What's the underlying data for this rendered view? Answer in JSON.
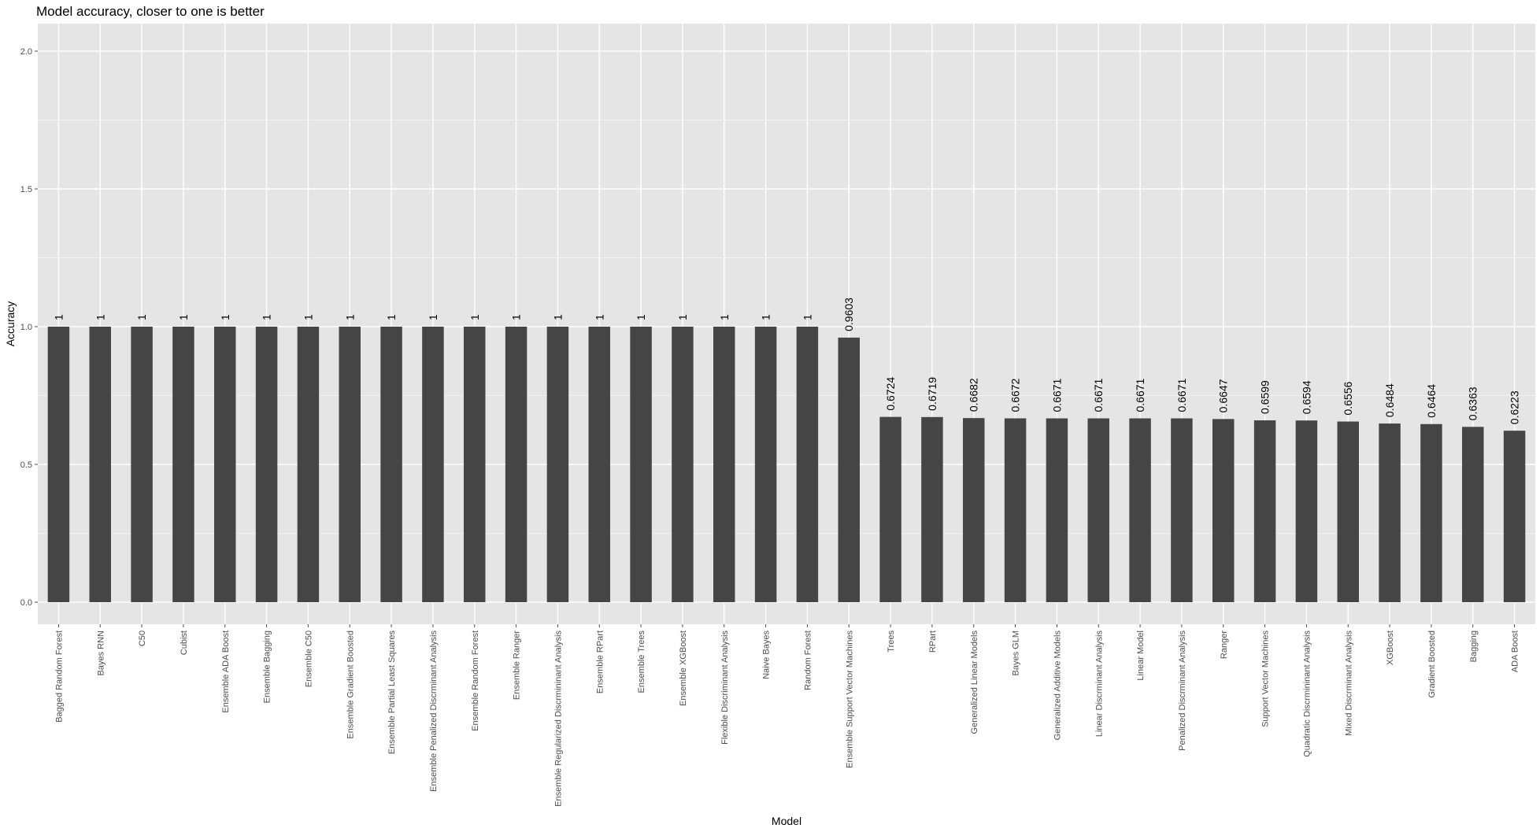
{
  "colors": {
    "panel_background": "#e5e5e5",
    "grid_major": "#ffffff",
    "grid_minor": "#f2f2f2",
    "bar_fill": "#454545",
    "tick_color": "#4d4d4d"
  },
  "chart_data": {
    "type": "bar",
    "title": "Model accuracy, closer to one is better",
    "xlabel": "Model",
    "ylabel": "Accuracy",
    "ylim": [
      -0.08,
      2.1
    ],
    "yticks": [
      0.0,
      0.5,
      1.0,
      1.5,
      2.0
    ],
    "y_tick_labels": [
      "0.0",
      "0.5",
      "1.0",
      "1.5",
      "2.0"
    ],
    "grid": true,
    "legend": "none",
    "categories": [
      "Bagged Random Forest",
      "Bayes RNN",
      "C50",
      "Cubist",
      "Ensemble ADA Boost",
      "Ensemble Bagging",
      "Ensemble C50",
      "Ensemble Gradient Boosted",
      "Ensemble Partial Least Squares",
      "Ensemble Penalized Discrminant Analysis",
      "Ensemble Random Forest",
      "Ensemble Ranger",
      "Ensemble Regularized Discrmininant Analysis",
      "Ensemble RPart",
      "Ensemble Trees",
      "Ensemble XGBoost",
      "Flexible Discriminant Analysis",
      "Naive Bayes",
      "Random Forest",
      "Ensemble Support Vector Machines",
      "Trees",
      "RPart",
      "Generalized Linear Models",
      "Bayes GLM",
      "Generalized Additive Models",
      "Linear Discrminant Analysis",
      "Linear Model",
      "Penalized Discrminant Analysis",
      "Ranger",
      "Support Vector Machines",
      "Quadratic Discrmininant Analysis",
      "Mixed Discrminant Analysis",
      "XGBoost",
      "Gradient Boosted",
      "Bagging",
      "ADA Boost"
    ],
    "values": [
      1,
      1,
      1,
      1,
      1,
      1,
      1,
      1,
      1,
      1,
      1,
      1,
      1,
      1,
      1,
      1,
      1,
      1,
      1,
      0.9603,
      0.6724,
      0.6719,
      0.6682,
      0.6672,
      0.6671,
      0.6671,
      0.6671,
      0.6671,
      0.6647,
      0.6599,
      0.6594,
      0.6556,
      0.6484,
      0.6464,
      0.6363,
      0.6223
    ],
    "data_labels": [
      "1",
      "1",
      "1",
      "1",
      "1",
      "1",
      "1",
      "1",
      "1",
      "1",
      "1",
      "1",
      "1",
      "1",
      "1",
      "1",
      "1",
      "1",
      "1",
      "0.9603",
      "0.6724",
      "0.6719",
      "0.6682",
      "0.6672",
      "0.6671",
      "0.6671",
      "0.6671",
      "0.6671",
      "0.6647",
      "0.6599",
      "0.6594",
      "0.6556",
      "0.6484",
      "0.6464",
      "0.6363",
      "0.6223"
    ]
  }
}
